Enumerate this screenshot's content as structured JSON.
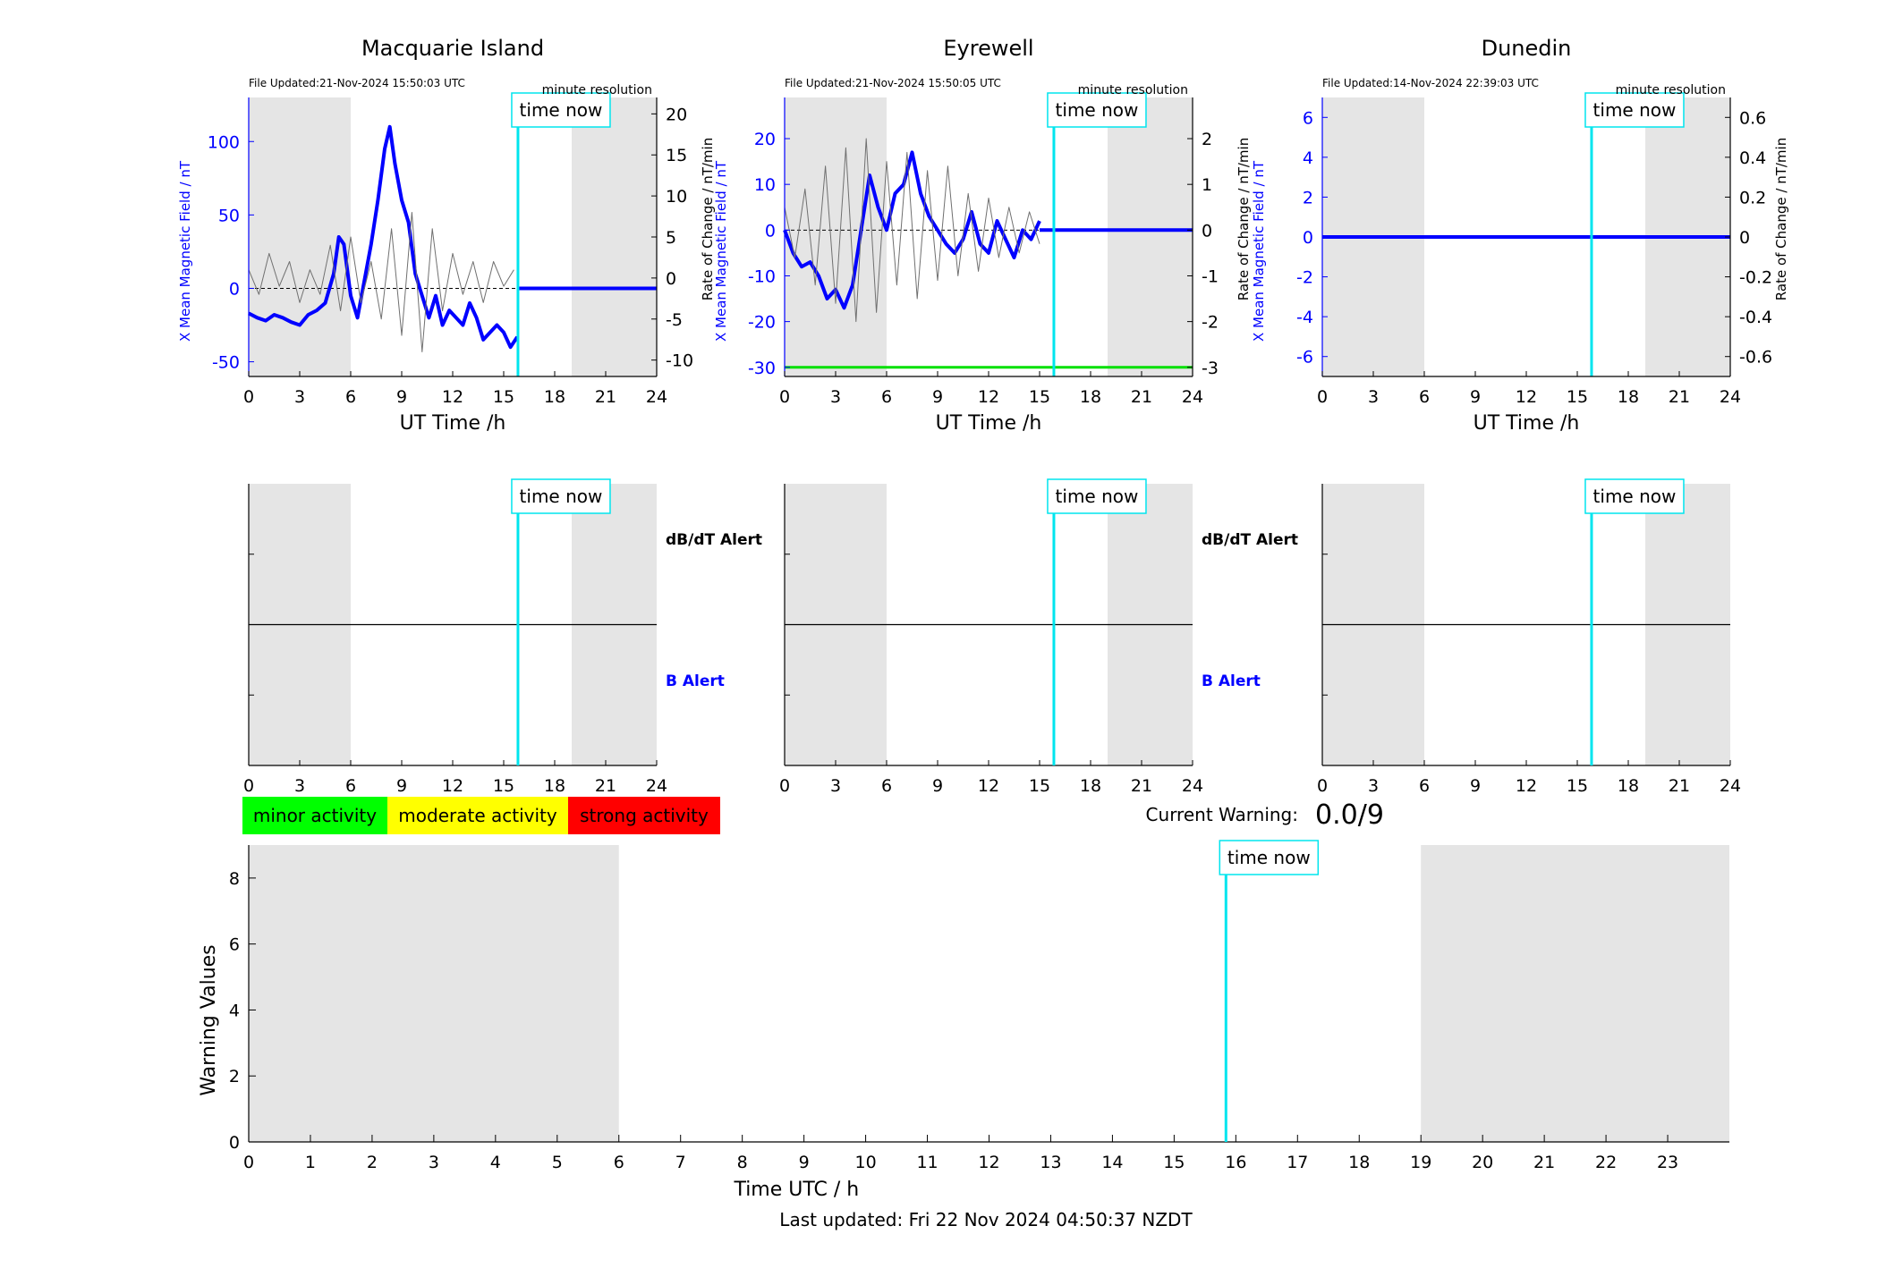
{
  "figure": {
    "last_updated": "Last updated: Fri 22 Nov 2024 04:50:37 NZDT",
    "current_warning_label": "Current Warning:",
    "current_warning_value": "0.0/9",
    "time_now_label": "time now",
    "time_now_hour": 15.84,
    "night_shading": [
      [
        0,
        6
      ],
      [
        19,
        24
      ]
    ]
  },
  "legend": {
    "items": [
      {
        "label": "minor activity",
        "color": "#00ff00"
      },
      {
        "label": "moderate activity",
        "color": "#ffff00"
      },
      {
        "label": "strong activity",
        "color": "#ff0000"
      }
    ]
  },
  "stations": [
    {
      "name": "Macquarie Island",
      "file_updated": "File Updated:21-Nov-2024 15:50:03 UTC",
      "resolution": "minute resolution",
      "left_label": "X Mean Magnetic Field / nT",
      "right_label": "Rate of Change / nT/min",
      "xlabel": "UT Time /h",
      "left_ticks": [
        -50,
        0,
        50,
        100
      ],
      "right_ticks": [
        -10,
        -5,
        0,
        5,
        10,
        15,
        20
      ],
      "right_tick_labels": [
        "-10",
        "-5",
        "0",
        "5",
        "10",
        "15",
        "20"
      ],
      "green_line": null
    },
    {
      "name": "Eyrewell",
      "file_updated": "File Updated:21-Nov-2024 15:50:05 UTC",
      "resolution": "minute resolution",
      "left_label": "X Mean Magnetic Field / nT",
      "right_label": "Rate of Change / nT/min",
      "xlabel": "UT Time /h",
      "left_ticks": [
        -30,
        -20,
        -10,
        0,
        10,
        20
      ],
      "right_ticks": [
        -3,
        -2,
        -1,
        0,
        1,
        2
      ],
      "right_tick_labels": [
        "-3",
        "-2",
        "-1",
        "0",
        "1",
        "2"
      ],
      "green_line": -30
    },
    {
      "name": "Dunedin",
      "file_updated": "File Updated:14-Nov-2024 22:39:03 UTC",
      "resolution": "minute resolution",
      "left_label": "X Mean Magnetic Field / nT",
      "right_label": "Rate of Change / nT/min",
      "xlabel": "UT Time /h",
      "left_ticks": [
        -6,
        -4,
        -2,
        0,
        2,
        4,
        6
      ],
      "right_ticks": [
        -0.6,
        -0.4,
        -0.2,
        0,
        0.2,
        0.4,
        0.6
      ],
      "right_tick_labels": [
        "-0.6",
        "-0.4",
        "-0.2",
        "0",
        "0.2",
        "0.4",
        "0.6"
      ],
      "green_line": null
    }
  ],
  "alert_panels": {
    "dbdt_label": "dB/dT Alert",
    "b_label": "B Alert"
  },
  "chart_data": [
    {
      "type": "line",
      "title": "Macquarie Island",
      "xlabel": "UT Time /h",
      "ylabel": "X Mean Magnetic Field / nT",
      "y2label": "Rate of Change / nT/min",
      "xlim": [
        0,
        24
      ],
      "ylim": [
        -60,
        130
      ],
      "y2lim": [
        -12,
        22
      ],
      "xticks": [
        0,
        3,
        6,
        9,
        12,
        15,
        18,
        21,
        24
      ],
      "series": [
        {
          "role": "field",
          "color": "#0000ff",
          "x": [
            0,
            0.5,
            1,
            1.5,
            2,
            2.5,
            3,
            3.5,
            4,
            4.5,
            5,
            5.3,
            5.6,
            6,
            6.4,
            6.8,
            7.2,
            7.6,
            8,
            8.3,
            8.6,
            9,
            9.4,
            9.8,
            10.2,
            10.6,
            11,
            11.4,
            11.8,
            12.2,
            12.6,
            13,
            13.4,
            13.8,
            14.2,
            14.6,
            15,
            15.4,
            15.8
          ],
          "y": [
            -17,
            -20,
            -22,
            -18,
            -20,
            -23,
            -25,
            -18,
            -15,
            -10,
            10,
            35,
            30,
            -5,
            -20,
            5,
            30,
            60,
            95,
            110,
            85,
            60,
            45,
            10,
            -5,
            -20,
            -5,
            -25,
            -15,
            -20,
            -25,
            -10,
            -20,
            -35,
            -30,
            -25,
            -30,
            -40,
            -33
          ]
        },
        {
          "role": "field-after-now",
          "color": "#0000ff",
          "x": [
            15.84,
            24
          ],
          "y": [
            0,
            0
          ]
        },
        {
          "role": "rate-of-change",
          "color": "#707070",
          "units": "nT/min",
          "x": [
            0,
            0.6,
            1.2,
            1.8,
            2.4,
            3,
            3.6,
            4.2,
            4.8,
            5.4,
            6,
            6.6,
            7.2,
            7.8,
            8.4,
            9,
            9.6,
            10.2,
            10.8,
            11.4,
            12,
            12.6,
            13.2,
            13.8,
            14.4,
            15,
            15.6
          ],
          "y": [
            1,
            -2,
            3,
            -1,
            2,
            -3,
            1,
            -2,
            4,
            -4,
            5,
            -3,
            2,
            -5,
            6,
            -7,
            8,
            -9,
            6,
            -4,
            3,
            -2,
            2,
            -3,
            2,
            -1,
            1
          ]
        }
      ]
    },
    {
      "type": "line",
      "title": "Eyrewell",
      "xlabel": "UT Time /h",
      "ylabel": "X Mean Magnetic Field / nT",
      "y2label": "Rate of Change / nT/min",
      "xlim": [
        0,
        24
      ],
      "ylim": [
        -32,
        29
      ],
      "y2lim": [
        -3.2,
        2.9
      ],
      "xticks": [
        0,
        3,
        6,
        9,
        12,
        15,
        18,
        21,
        24
      ],
      "series": [
        {
          "role": "field",
          "color": "#0000ff",
          "x": [
            0,
            0.5,
            1,
            1.5,
            2,
            2.5,
            3,
            3.5,
            4,
            4.5,
            5,
            5.5,
            6,
            6.5,
            7,
            7.5,
            8,
            8.5,
            9,
            9.5,
            10,
            10.5,
            11,
            11.5,
            12,
            12.5,
            13,
            13.5,
            14,
            14.5,
            15
          ],
          "y": [
            0,
            -5,
            -8,
            -7,
            -10,
            -15,
            -13,
            -17,
            -12,
            0,
            12,
            5,
            0,
            8,
            10,
            17,
            8,
            3,
            0,
            -3,
            -5,
            -2,
            4,
            -3,
            -5,
            2,
            -2,
            -6,
            0,
            -2,
            2
          ]
        },
        {
          "role": "field-after-now",
          "color": "#0000ff",
          "x": [
            15,
            24
          ],
          "y": [
            0,
            0
          ]
        },
        {
          "role": "rate-of-change",
          "color": "#707070",
          "units": "nT/min",
          "x": [
            0,
            0.6,
            1.2,
            1.8,
            2.4,
            3,
            3.6,
            4.2,
            4.8,
            5.4,
            6,
            6.6,
            7.2,
            7.8,
            8.4,
            9,
            9.6,
            10.2,
            10.8,
            11.4,
            12,
            12.6,
            13.2,
            13.8,
            14.4,
            15
          ],
          "y": [
            0.5,
            -0.6,
            0.9,
            -1.2,
            1.4,
            -1.6,
            1.8,
            -2,
            2,
            -1.8,
            1.5,
            -1.2,
            1.7,
            -1.5,
            1.3,
            -1.1,
            1.4,
            -1,
            0.8,
            -0.9,
            0.7,
            -0.6,
            0.5,
            -0.5,
            0.4,
            -0.3
          ]
        },
        {
          "role": "threshold",
          "color": "#00e000",
          "x": [
            0,
            24
          ],
          "y": [
            -30,
            -30
          ]
        }
      ]
    },
    {
      "type": "line",
      "title": "Dunedin",
      "xlabel": "UT Time /h",
      "ylabel": "X Mean Magnetic Field / nT",
      "y2label": "Rate of Change / nT/min",
      "xlim": [
        0,
        24
      ],
      "ylim": [
        -7,
        7
      ],
      "y2lim": [
        -0.7,
        0.7
      ],
      "xticks": [
        0,
        3,
        6,
        9,
        12,
        15,
        18,
        21,
        24
      ],
      "series": [
        {
          "role": "field",
          "color": "#0000ff",
          "x": [
            0,
            24
          ],
          "y": [
            0,
            0
          ]
        }
      ]
    },
    {
      "type": "line",
      "title": "",
      "xlabel": "Time UTC / h",
      "ylabel": "Warning Values",
      "xlim": [
        0,
        24
      ],
      "ylim": [
        0,
        9
      ],
      "xticks": [
        0,
        1,
        2,
        3,
        4,
        5,
        6,
        7,
        8,
        9,
        10,
        11,
        12,
        13,
        14,
        15,
        16,
        17,
        18,
        19,
        20,
        21,
        22,
        23
      ],
      "yticks": [
        0,
        2,
        4,
        6,
        8
      ],
      "series": []
    }
  ]
}
